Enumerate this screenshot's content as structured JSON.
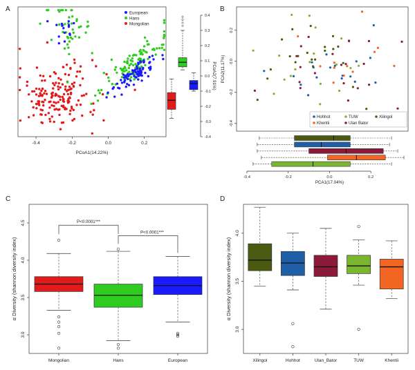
{
  "panels": {
    "A": {
      "label": "A"
    },
    "B": {
      "label": "B"
    },
    "C": {
      "label": "C"
    },
    "D": {
      "label": "D"
    }
  },
  "colors": {
    "European": "#1a1aff",
    "Hans": "#2ecc1f",
    "Mongolian": "#e21a1a",
    "Hohhot": "#1f5fa8",
    "Khentii": "#f26522",
    "TUW": "#7ab630",
    "Ulan_Bator": "#8b1a3a",
    "Xilingol": "#4a5a10"
  },
  "chart_data": [
    {
      "id": "A",
      "type": "scatter",
      "xlabel": "PCoA1(14.22%)",
      "ylabel": "PCoA2(7.91%)",
      "xlim": [
        -0.5,
        0.32
      ],
      "ylim": [
        -0.4,
        0.4
      ],
      "xticks": [
        -0.4,
        -0.2,
        0.0,
        0.2
      ],
      "xtick_labels": [
        "-0.4",
        "-0.2",
        "0.0",
        "0.2"
      ],
      "yticks": [
        -0.4,
        -0.3,
        -0.2,
        -0.1,
        0.0,
        0.1,
        0.2,
        0.3,
        0.4
      ],
      "ytick_labels": [
        "-0.4",
        "-0.3",
        "-0.2",
        "-0.1",
        "0.0",
        "0.1",
        "0.2",
        "0.3",
        "0.4"
      ],
      "legend": [
        "European",
        "Hans",
        "Mongolian"
      ],
      "legend_position": "top-right",
      "side_boxplots": [
        {
          "name": "Mongolian",
          "min": -0.28,
          "q1": -0.22,
          "median": -0.16,
          "q3": -0.11,
          "max": -0.02
        },
        {
          "name": "Hans",
          "min": 0.04,
          "q1": 0.06,
          "median": 0.09,
          "q3": 0.12,
          "max": 0.3
        },
        {
          "name": "European",
          "min": -0.1,
          "q1": -0.09,
          "median": -0.05,
          "q3": -0.03,
          "max": 0.02
        }
      ],
      "point_clusters": [
        {
          "series": "Mongolian",
          "n": 180,
          "cx": -0.28,
          "cy": -0.15,
          "sx": 0.11,
          "sy": 0.1
        },
        {
          "series": "Hans",
          "n": 110,
          "cx": 0.15,
          "cy": 0.06,
          "sx": 0.09,
          "sy": 0.07
        },
        {
          "series": "Hans",
          "n": 45,
          "cx": -0.21,
          "cy": 0.26,
          "sx": 0.07,
          "sy": 0.08
        },
        {
          "series": "European",
          "n": 85,
          "cx": 0.14,
          "cy": -0.02,
          "sx": 0.08,
          "sy": 0.06
        },
        {
          "series": "European",
          "n": 15,
          "cx": -0.24,
          "cy": 0.25,
          "sx": 0.05,
          "sy": 0.05
        }
      ]
    },
    {
      "id": "B",
      "type": "scatter",
      "xlabel": "PCA1(17.04%)",
      "ylabel": "PCA2(11.17%)",
      "xlim": [
        -0.45,
        0.38
      ],
      "ylim": [
        -0.45,
        0.35
      ],
      "xticks": [
        -0.4,
        -0.2,
        0.0,
        0.2
      ],
      "xtick_labels": [
        "-0.4",
        "-0.2",
        "0.0",
        "0.2"
      ],
      "yticks": [
        -0.4,
        -0.2,
        0.0,
        0.2
      ],
      "ytick_labels": [
        "-0.4",
        "-0.2",
        "0.0",
        "0.2"
      ],
      "legend": [
        "Hohhot",
        "TUW",
        "Xilingol",
        "Khentii",
        "Ulan Bator"
      ],
      "legend_position": "bottom-right",
      "point_clusters": [
        {
          "series": "Hohhot",
          "n": 18,
          "cx": 0.05,
          "cy": -0.05,
          "sx": 0.14,
          "sy": 0.13
        },
        {
          "series": "TUW",
          "n": 18,
          "cx": -0.05,
          "cy": 0.0,
          "sx": 0.16,
          "sy": 0.13
        },
        {
          "series": "Xilingol",
          "n": 22,
          "cx": -0.12,
          "cy": 0.04,
          "sx": 0.15,
          "sy": 0.14
        },
        {
          "series": "Khentii",
          "n": 12,
          "cx": 0.1,
          "cy": 0.02,
          "sx": 0.14,
          "sy": 0.11
        },
        {
          "series": "Ulan_Bator",
          "n": 20,
          "cx": 0.0,
          "cy": -0.02,
          "sx": 0.16,
          "sy": 0.14
        }
      ],
      "bottom_boxplots": [
        {
          "name": "Xilingol",
          "min": -0.34,
          "q1": -0.17,
          "median": 0.02,
          "q3": 0.1,
          "max": 0.3
        },
        {
          "name": "Hohhot",
          "min": -0.35,
          "q1": -0.17,
          "median": -0.04,
          "q3": 0.1,
          "max": 0.29
        },
        {
          "name": "Ulan_Bator",
          "min": -0.35,
          "q1": -0.1,
          "median": 0.08,
          "q3": 0.26,
          "max": 0.33
        },
        {
          "name": "Khentii",
          "min": -0.33,
          "q1": -0.01,
          "median": 0.13,
          "q3": 0.27,
          "max": 0.36
        },
        {
          "name": "TUW",
          "min": -0.37,
          "q1": -0.28,
          "median": -0.08,
          "q3": 0.1,
          "max": 0.3
        }
      ]
    },
    {
      "id": "C",
      "type": "box",
      "ylabel": "α Diversity (shannon diversity index)",
      "ylim": [
        2.75,
        4.75
      ],
      "yticks": [
        3.0,
        3.5,
        4.0,
        4.5
      ],
      "ytick_labels": [
        "3.0",
        "3.5",
        "4.0",
        "4.5"
      ],
      "categories": [
        "Mongolian",
        "Hans",
        "European"
      ],
      "boxes": [
        {
          "name": "Mongolian",
          "min": 3.33,
          "q1": 3.58,
          "median": 3.68,
          "q3": 3.78,
          "max": 4.09,
          "outliers": [
            2.82,
            3.02,
            3.11,
            3.17,
            3.24,
            4.27
          ]
        },
        {
          "name": "Hans",
          "min": 2.92,
          "q1": 3.37,
          "median": 3.53,
          "q3": 3.68,
          "max": 4.12,
          "outliers": [
            2.82,
            2.87,
            4.15
          ]
        },
        {
          "name": "European",
          "min": 3.17,
          "q1": 3.54,
          "median": 3.66,
          "q3": 3.78,
          "max": 4.05,
          "outliers": [
            2.98,
            3.0,
            3.02
          ]
        }
      ],
      "annotations": [
        {
          "text": "P<0.0001***",
          "from": "Mongolian",
          "to": "Hans"
        },
        {
          "text": "P<0.0001***",
          "from": "Hans",
          "to": "European"
        }
      ]
    },
    {
      "id": "D",
      "type": "box",
      "ylabel": "α Diversity (shannon diversity index)",
      "ylim": [
        2.75,
        4.3
      ],
      "yticks": [
        3.0,
        3.5,
        4.0
      ],
      "ytick_labels": [
        "3.0",
        "3.5",
        "4.0"
      ],
      "categories": [
        "Xilingol",
        "Hohhot",
        "Ulan_Bator",
        "TUW",
        "Khentii"
      ],
      "boxes": [
        {
          "name": "Xilingol",
          "min": 3.45,
          "q1": 3.61,
          "median": 3.72,
          "q3": 3.89,
          "max": 4.27,
          "outliers": []
        },
        {
          "name": "Hohhot",
          "min": 3.41,
          "q1": 3.56,
          "median": 3.69,
          "q3": 3.81,
          "max": 4.0,
          "outliers": [
            2.82,
            3.06
          ]
        },
        {
          "name": "Ulan_Bator",
          "min": 3.21,
          "q1": 3.55,
          "median": 3.65,
          "q3": 3.77,
          "max": 4.05,
          "outliers": []
        },
        {
          "name": "TUW",
          "min": 3.46,
          "q1": 3.58,
          "median": 3.66,
          "q3": 3.77,
          "max": 3.93,
          "outliers": [
            3.0,
            4.07
          ]
        },
        {
          "name": "Khentii",
          "min": 3.32,
          "q1": 3.42,
          "median": 3.65,
          "q3": 3.73,
          "max": 3.92,
          "outliers": []
        }
      ]
    }
  ]
}
